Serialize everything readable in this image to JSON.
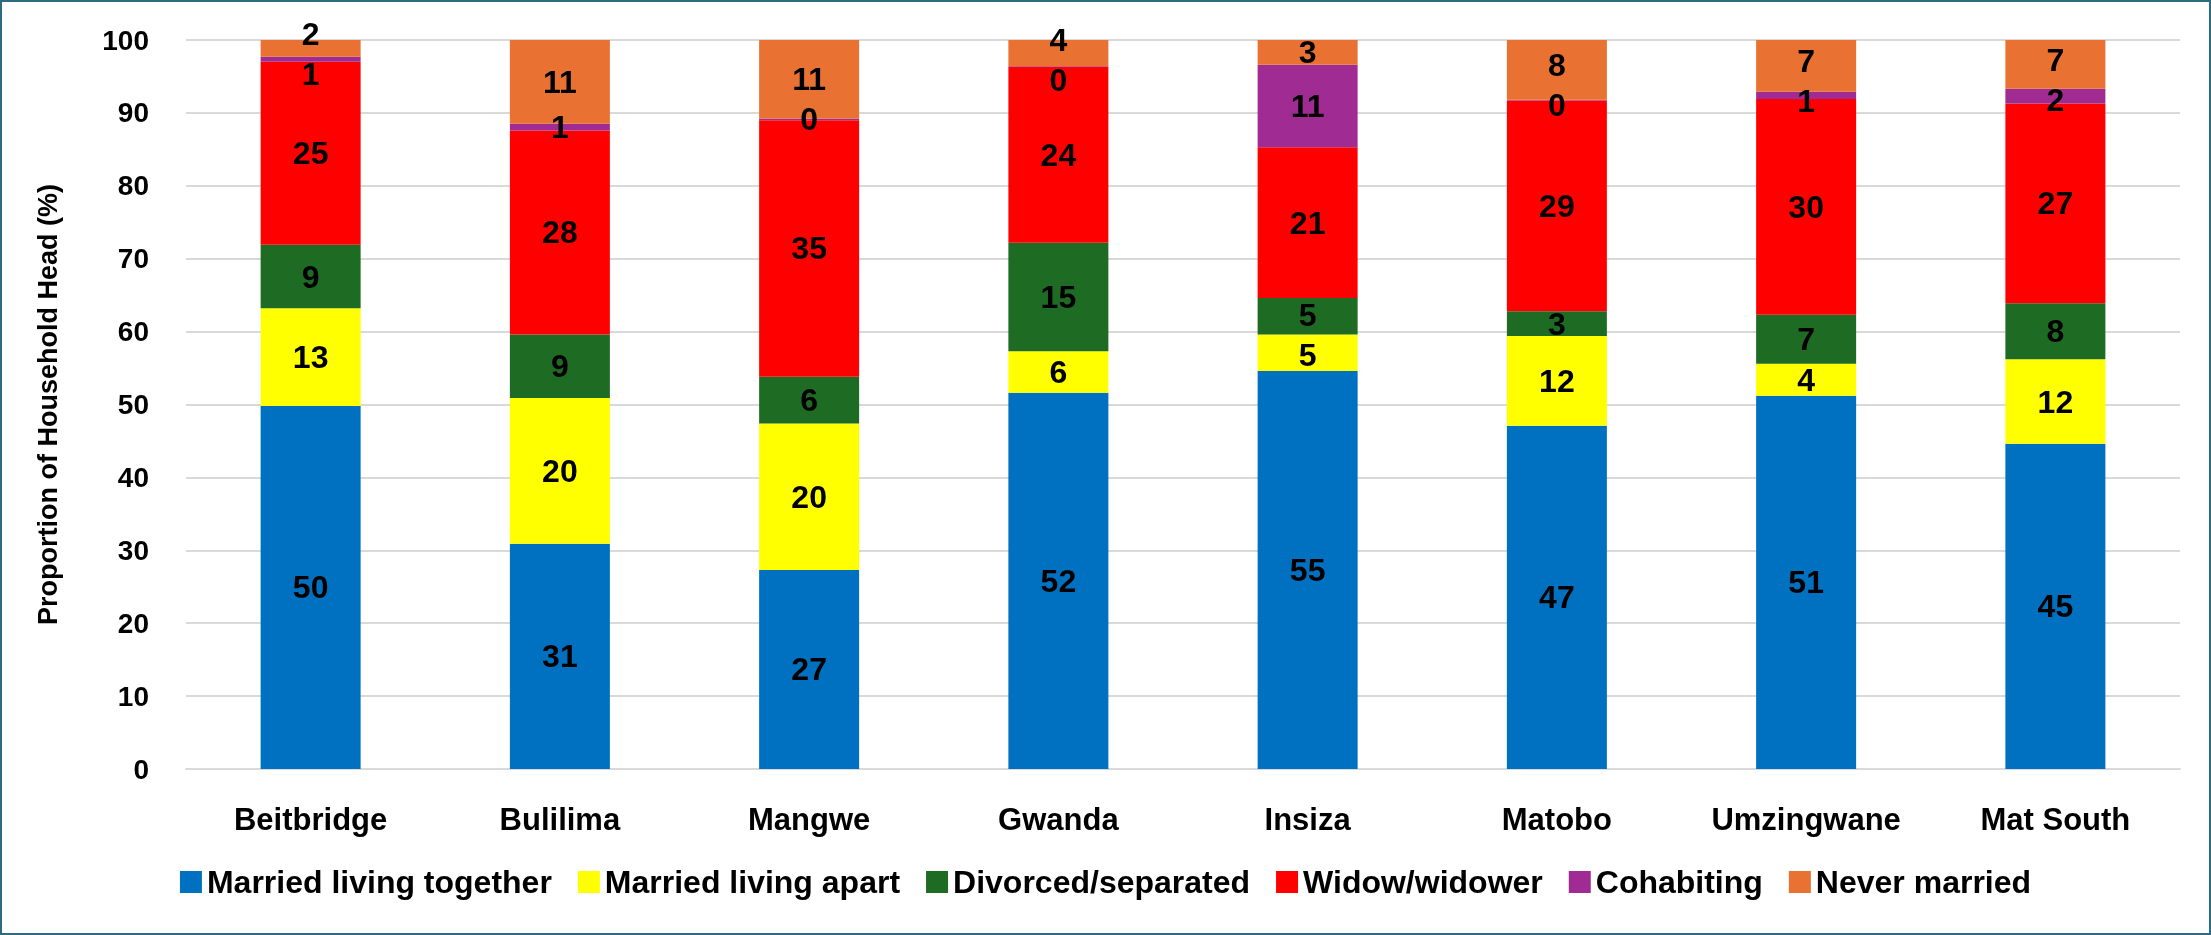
{
  "chart_data": {
    "type": "bar",
    "stacked": true,
    "ylabel": "Proportion of Household Head (%)",
    "categories": [
      "Beitbridge",
      "Bulilima",
      "Mangwe",
      "Gwanda",
      "Insiza",
      "Matobo",
      "Umzingwane",
      "Mat South"
    ],
    "series": [
      {
        "name": "Married living together",
        "color": "#0070c0",
        "values": [
          49.8,
          30.9,
          27.3,
          51.6,
          54.6,
          47.1,
          51.2,
          44.6
        ],
        "value_labels": [
          "50",
          "31",
          "27",
          "52",
          "55",
          "47",
          "51",
          "45"
        ]
      },
      {
        "name": "Married living apart",
        "color": "#ffff00",
        "values": [
          13.4,
          20.0,
          20.1,
          5.7,
          5.0,
          12.3,
          4.4,
          11.6
        ],
        "value_labels": [
          "13",
          "20",
          "20",
          "6",
          "5",
          "12",
          "4",
          "12"
        ]
      },
      {
        "name": "Divorced/separated",
        "color": "#1e6b24",
        "values": [
          8.7,
          8.7,
          6.4,
          14.9,
          5.0,
          3.4,
          6.7,
          7.7
        ],
        "value_labels": [
          "9",
          "9",
          "6",
          "15",
          "5",
          "3",
          "7",
          "8"
        ]
      },
      {
        "name": "Widow/widower",
        "color": "#ff0000",
        "values": [
          25.1,
          28.0,
          35.2,
          24.1,
          20.7,
          28.9,
          29.6,
          27.4
        ],
        "value_labels": [
          "25",
          "28",
          "35",
          "24",
          "21",
          "29",
          "30",
          "27"
        ]
      },
      {
        "name": "Cohabiting",
        "color": "#a02b93",
        "values": [
          0.7,
          0.9,
          0.2,
          0.1,
          11.3,
          0.1,
          1.0,
          2.0
        ],
        "value_labels": [
          "1",
          "1",
          "0",
          "0",
          "11",
          "0",
          "1",
          "2"
        ]
      },
      {
        "name": "Never married",
        "color": "#e97132",
        "values": [
          2.3,
          11.5,
          10.8,
          3.6,
          3.4,
          8.2,
          7.1,
          6.7
        ],
        "value_labels": [
          "2",
          "11",
          "11",
          "4",
          "3",
          "8",
          "7",
          "7"
        ]
      }
    ],
    "ylim": [
      0,
      100
    ],
    "yticks": [
      0,
      10,
      20,
      30,
      40,
      50,
      60,
      70,
      80,
      90,
      100
    ],
    "grid": "y",
    "legend": "bottom"
  }
}
